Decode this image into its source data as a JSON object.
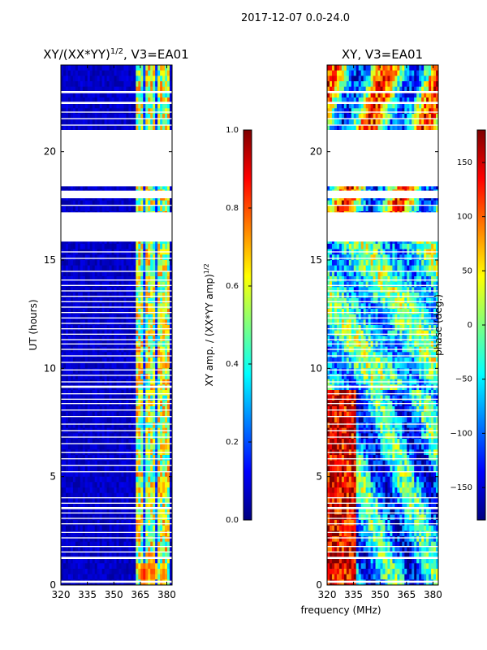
{
  "figure": {
    "suptitle": "2017-12-07 0.0-24.0",
    "shared_xlabel": "frequency (MHz)"
  },
  "colors": {
    "jet": [
      "#00007f",
      "#0000ff",
      "#007fff",
      "#00ffff",
      "#7fff7f",
      "#ffff00",
      "#ff7f00",
      "#ff0000",
      "#7f0000"
    ],
    "gap": "#ffffff",
    "axis": "#000000"
  },
  "chart_data": [
    {
      "type": "heatmap",
      "title": "XY/(XX*YY)^1/2, V3=EA01",
      "title_main": "XY/(XX*YY)",
      "title_exp": "1/2",
      "title_suffix": ", V3=EA01",
      "xlabel": "",
      "ylabel": "UT (hours)",
      "xlim": [
        320,
        383
      ],
      "ylim": [
        0,
        24
      ],
      "xticks": [
        320,
        335,
        350,
        365,
        380
      ],
      "yticks": [
        0,
        5,
        10,
        15,
        20
      ],
      "colorbar": {
        "label": "XY amp. / (XX*YY amp)^1/2",
        "label_main": "XY amp. / (XX*YY amp)",
        "label_exp": "1/2",
        "range": [
          0,
          1
        ],
        "ticks": [
          "0.0",
          "0.2",
          "0.4",
          "0.6",
          "0.8",
          "1.0"
        ],
        "tick_values": [
          0.0,
          0.2,
          0.4,
          0.6,
          0.8,
          1.0
        ]
      },
      "description_values": {
        "background_below_363MHz": 0.03,
        "bright_band_363_to_381MHz": 0.6,
        "hot_spots": [
          {
            "freq": 367,
            "ut": 0.5,
            "value": 0.9
          },
          {
            "freq": 372,
            "ut": 0.6,
            "value": 0.85
          },
          {
            "freq": 378,
            "ut": 0.5,
            "value": 0.8
          },
          {
            "freq": 378,
            "ut": 4.5,
            "value": 0.75
          },
          {
            "freq": 377,
            "ut": 10.5,
            "value": 0.75
          },
          {
            "freq": 377,
            "ut": 12.5,
            "value": 0.7
          }
        ]
      }
    },
    {
      "type": "heatmap",
      "title": "XY, V3=EA01",
      "xlabel": "frequency (MHz)",
      "ylabel": "",
      "xlim": [
        320,
        383
      ],
      "ylim": [
        0,
        24
      ],
      "xticks": [
        320,
        335,
        350,
        365,
        380
      ],
      "yticks": [
        0,
        5,
        10,
        15,
        20
      ],
      "colorbar": {
        "label": "phase (deg.)",
        "range": [
          -180,
          180
        ],
        "ticks": [
          "−150",
          "−100",
          "−50",
          "0",
          "50",
          "100",
          "150"
        ],
        "tick_values": [
          -150,
          -100,
          -50,
          0,
          50,
          100,
          150
        ]
      }
    }
  ],
  "data_gaps_ut": [
    [
      0.1,
      0.2
    ],
    [
      1.2,
      1.3
    ],
    [
      1.5,
      1.55
    ],
    [
      1.75,
      1.8
    ],
    [
      2.15,
      2.2
    ],
    [
      2.4,
      2.45
    ],
    [
      2.8,
      2.85
    ],
    [
      3.05,
      3.1
    ],
    [
      3.3,
      3.35
    ],
    [
      3.5,
      3.6
    ],
    [
      3.75,
      3.8
    ],
    [
      4.0,
      4.05
    ],
    [
      5.2,
      5.25
    ],
    [
      5.5,
      5.55
    ],
    [
      5.8,
      5.85
    ],
    [
      6.1,
      6.15
    ],
    [
      6.5,
      6.55
    ],
    [
      6.8,
      6.85
    ],
    [
      7.1,
      7.15
    ],
    [
      7.4,
      7.45
    ],
    [
      7.75,
      7.8
    ],
    [
      8.05,
      8.1
    ],
    [
      8.35,
      8.4
    ],
    [
      8.55,
      8.6
    ],
    [
      8.8,
      8.85
    ],
    [
      9.1,
      9.2
    ],
    [
      9.35,
      9.4
    ],
    [
      9.65,
      9.7
    ],
    [
      9.9,
      9.95
    ],
    [
      10.25,
      10.3
    ],
    [
      10.55,
      10.6
    ],
    [
      10.85,
      10.9
    ],
    [
      11.1,
      11.15
    ],
    [
      11.3,
      11.35
    ],
    [
      11.55,
      11.6
    ],
    [
      11.8,
      11.85
    ],
    [
      12.05,
      12.1
    ],
    [
      12.3,
      12.35
    ],
    [
      12.55,
      12.6
    ],
    [
      12.8,
      12.85
    ],
    [
      13.05,
      13.1
    ],
    [
      13.3,
      13.35
    ],
    [
      13.55,
      13.6
    ],
    [
      13.8,
      13.85
    ],
    [
      14.05,
      14.1
    ],
    [
      14.45,
      14.5
    ],
    [
      15.05,
      15.1
    ],
    [
      15.35,
      15.4
    ],
    [
      15.85,
      17.2
    ],
    [
      17.5,
      17.55
    ],
    [
      17.85,
      18.2
    ],
    [
      18.4,
      21.0
    ],
    [
      21.2,
      21.25
    ],
    [
      21.5,
      21.55
    ],
    [
      21.8,
      21.85
    ],
    [
      22.2,
      22.3
    ],
    [
      22.7,
      22.8
    ]
  ]
}
